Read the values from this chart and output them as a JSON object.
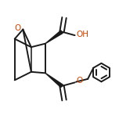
{
  "bg_color": "#ffffff",
  "bond_color": "#1a1a1a",
  "bond_width": 1.4,
  "o_color": "#cc4400",
  "figsize": [
    1.52,
    1.52
  ],
  "dpi": 100,
  "xlim": [
    0.0,
    1.0
  ],
  "ylim": [
    0.1,
    0.95
  ]
}
